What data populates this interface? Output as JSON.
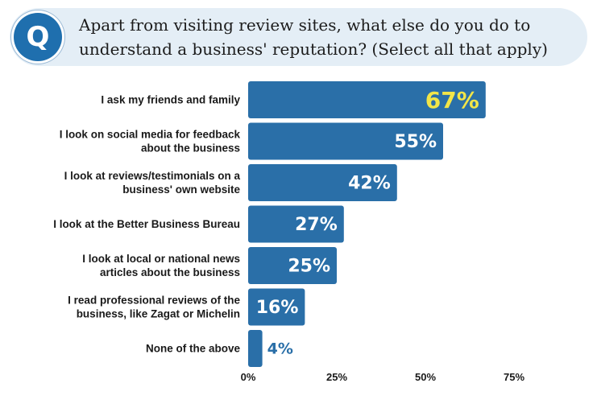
{
  "question": {
    "badge": "Q",
    "text": "Apart from visiting review sites, what else do you do to understand a business' reputation? (Select all that apply)"
  },
  "colors": {
    "bar": "#2a6fa8",
    "highlight_label": "#f2e548",
    "label": "#ffffff",
    "outside_label": "#2a6fa8",
    "banner": "#e4eef6"
  },
  "chart_data": {
    "type": "bar",
    "orientation": "horizontal",
    "categories": [
      [
        "I ask my friends and family"
      ],
      [
        "I look on social media for feedback",
        "about the business"
      ],
      [
        "I look at reviews/testimonials on a",
        "business' own website"
      ],
      [
        "I look at the Better Business Bureau"
      ],
      [
        "I look at local or national news",
        "articles about the business"
      ],
      [
        "I read professional reviews of the",
        "business, like Zagat or Michelin"
      ],
      [
        "None of the above"
      ]
    ],
    "values": [
      67,
      55,
      42,
      27,
      25,
      16,
      4
    ],
    "data_labels": [
      "67%",
      "55%",
      "42%",
      "27%",
      "25%",
      "16%",
      "4%"
    ],
    "highlight_index": 0,
    "xlim": [
      0,
      75
    ],
    "x_ticks": [
      0,
      25,
      50,
      75
    ],
    "x_tick_labels": [
      "0%",
      "25%",
      "50%",
      "75%"
    ],
    "grid": false
  }
}
